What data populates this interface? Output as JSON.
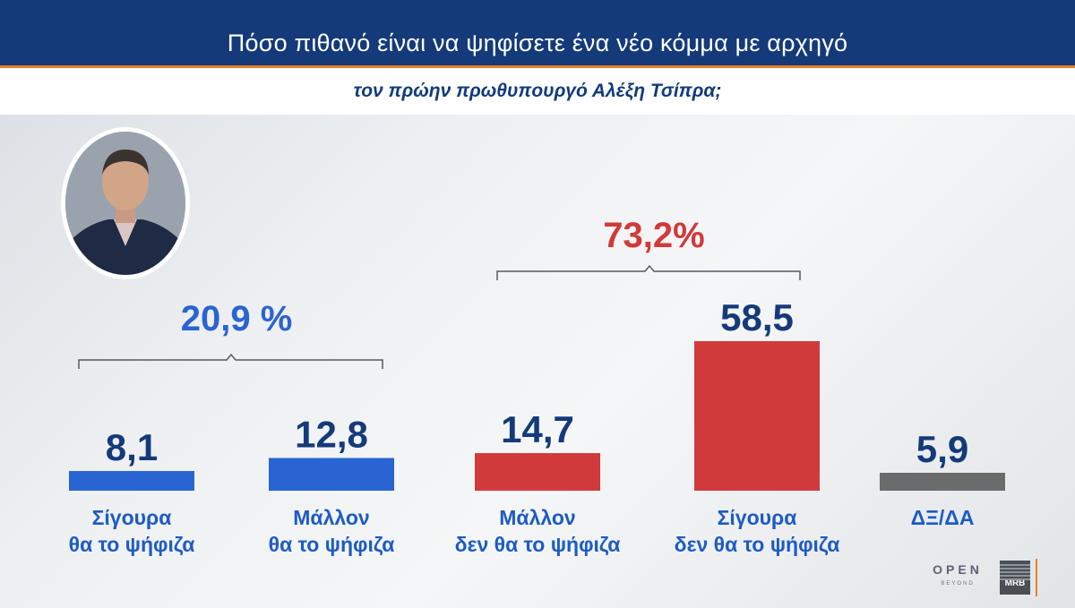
{
  "header": {
    "title": "Πόσο πιθανό είναι να ψηφίσετε ένα νέο κόμμα με αρχηγό",
    "subtitle": "τον πρώην πρωθυπουργό Αλέξη Τσίπρα;"
  },
  "groups": {
    "positive_total": "20,9 %",
    "negative_total": "73,2%"
  },
  "colors": {
    "positive": "#2a64d2",
    "negative": "#d13a3a",
    "neutral": "#6b6b6b",
    "value_text": "#143a7a",
    "label_text": "#1d5bc4"
  },
  "logos": {
    "channel": "OPEN",
    "channel_sub": "BEYOND",
    "pollster": "MRB"
  },
  "chart_data": {
    "type": "bar",
    "categories": [
      [
        "Σίγουρα",
        "θα το ψήφιζα"
      ],
      [
        "Μάλλον",
        "θα το ψήφιζα"
      ],
      [
        "Μάλλον",
        "δεν θα το ψήφιζα"
      ],
      [
        "Σίγουρα",
        "δεν θα το ψήφιζα"
      ],
      [
        "ΔΞ/ΔΑ"
      ]
    ],
    "values": [
      8.1,
      12.8,
      14.7,
      58.5,
      5.9
    ],
    "value_labels": [
      "8,1",
      "12,8",
      "14,7",
      "58,5",
      "5,9"
    ],
    "bar_colors": [
      "#2a64d2",
      "#2a64d2",
      "#d13a3a",
      "#d13a3a",
      "#6b6b6b"
    ]
  }
}
